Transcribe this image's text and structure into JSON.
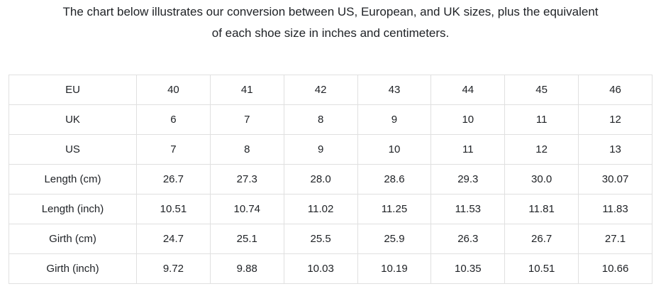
{
  "page": {
    "background": "#ffffff",
    "text_color": "#202327",
    "border_color": "#e0e0e0"
  },
  "intro": {
    "line1": "The chart below illustrates our conversion between US, European, and UK sizes, plus the equivalent",
    "line2": "of each shoe size in inches and centimeters."
  },
  "chart_data": {
    "type": "table",
    "rows": [
      {
        "label": "EU",
        "values": [
          "40",
          "41",
          "42",
          "43",
          "44",
          "45",
          "46"
        ]
      },
      {
        "label": "UK",
        "values": [
          "6",
          "7",
          "8",
          "9",
          "10",
          "11",
          "12"
        ]
      },
      {
        "label": "US",
        "values": [
          "7",
          "8",
          "9",
          "10",
          "11",
          "12",
          "13"
        ]
      },
      {
        "label": "Length (cm)",
        "values": [
          "26.7",
          "27.3",
          "28.0",
          "28.6",
          "29.3",
          "30.0",
          "30.07"
        ]
      },
      {
        "label": "Length (inch)",
        "values": [
          "10.51",
          "10.74",
          "11.02",
          "11.25",
          "11.53",
          "11.81",
          "11.83"
        ]
      },
      {
        "label": "Girth (cm)",
        "values": [
          "24.7",
          "25.1",
          "25.5",
          "25.9",
          "26.3",
          "26.7",
          "27.1"
        ]
      },
      {
        "label": "Girth (inch)",
        "values": [
          "9.72",
          "9.88",
          "10.03",
          "10.19",
          "10.35",
          "10.51",
          "10.66"
        ]
      }
    ]
  }
}
